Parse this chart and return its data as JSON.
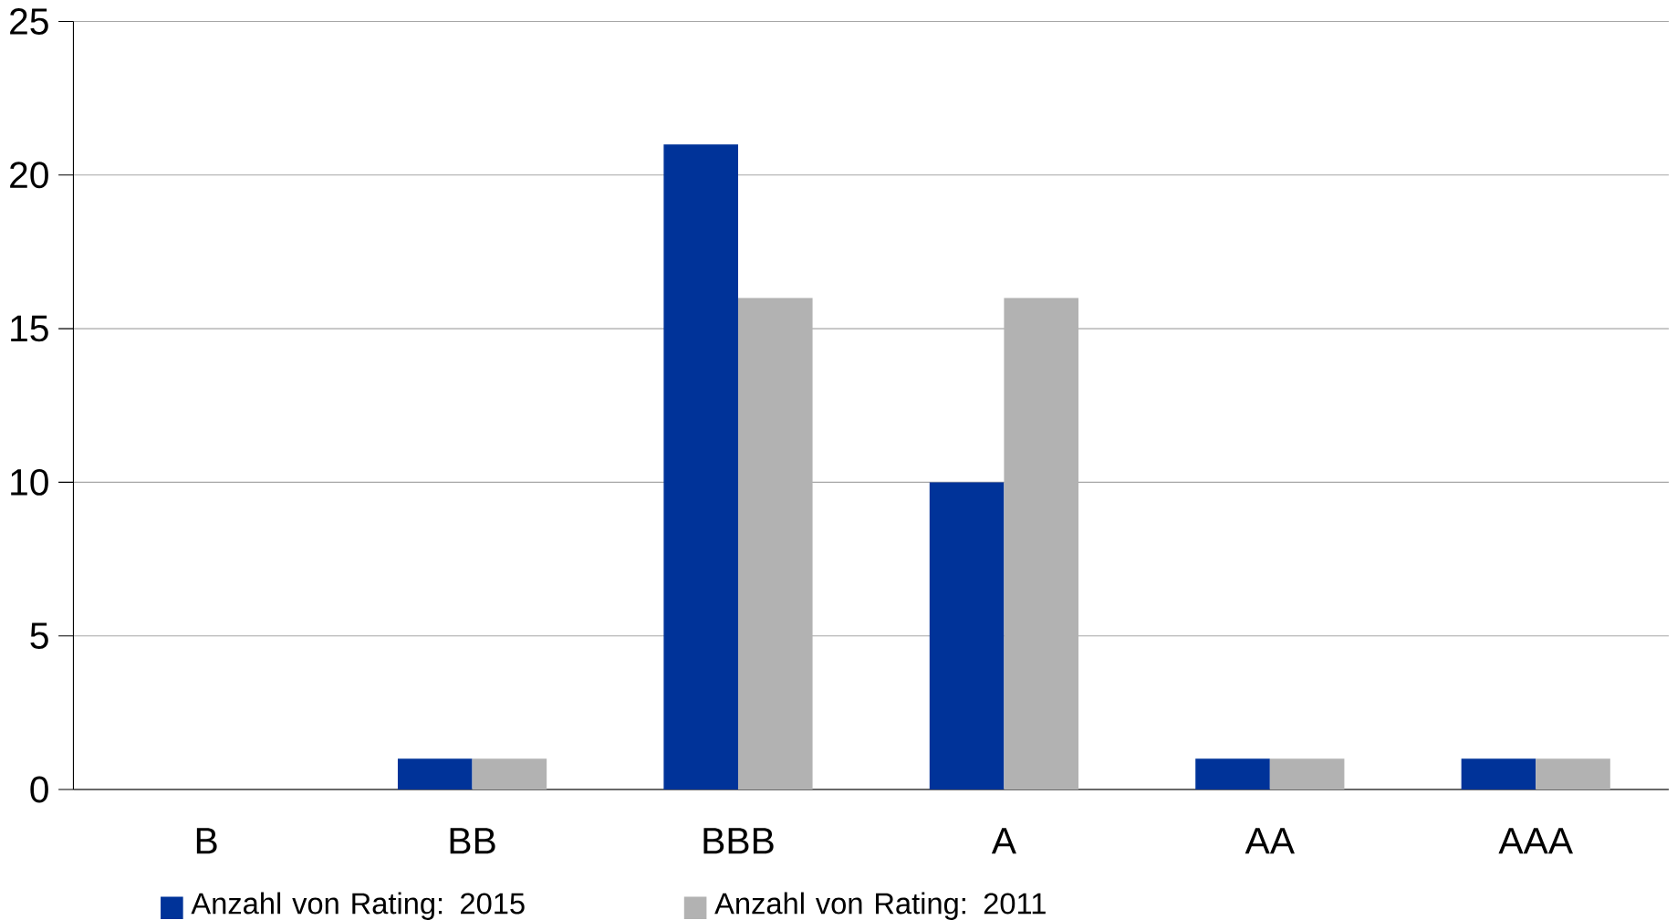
{
  "chart_data": {
    "type": "bar",
    "categories": [
      "B",
      "BB",
      "BBB",
      "A",
      "AA",
      "AAA"
    ],
    "series": [
      {
        "name": "Anzahl von Rating: 2015",
        "color": "#003399",
        "values": [
          0,
          1,
          21,
          10,
          1,
          1
        ]
      },
      {
        "name": "Anzahl von Rating: 2011",
        "color": "#b2b2b2",
        "values": [
          0,
          1,
          16,
          16,
          1,
          1
        ]
      }
    ],
    "ylim": [
      0,
      25
    ],
    "yticks": [
      0,
      5,
      10,
      15,
      20,
      25
    ],
    "grid": "y",
    "legend": "bottom"
  }
}
